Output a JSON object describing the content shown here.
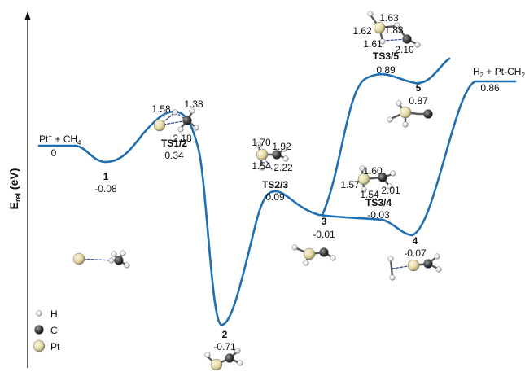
{
  "axis": {
    "ylabel": "E",
    "ylabel_sub": "rel",
    "ylabel_unit": " (eV)"
  },
  "states": [
    {
      "id": "start",
      "name_main": "Pt",
      "name_sup": "−",
      "name_rest": " + CH",
      "name_sub": "4",
      "energy": "0"
    },
    {
      "id": "1",
      "name": "1",
      "energy": "-0.08"
    },
    {
      "id": "TS1/2",
      "name": "TS1/2",
      "energy": "0.34"
    },
    {
      "id": "2",
      "name": "2",
      "energy": "-0.71"
    },
    {
      "id": "TS2/3",
      "name": "TS2/3",
      "energy": "0.09"
    },
    {
      "id": "3",
      "name": "3",
      "energy": "-0.01"
    },
    {
      "id": "TS3/4",
      "name": "TS3/4",
      "energy": "-0.03"
    },
    {
      "id": "4",
      "name": "4",
      "energy": "-0.07"
    },
    {
      "id": "TS3/5",
      "name": "TS3/5",
      "energy": "0.89"
    },
    {
      "id": "5",
      "name": "5",
      "energy": "0.87"
    },
    {
      "id": "end",
      "name_a": "H",
      "name_a_sub": "2",
      "name_b": " + Pt-CH",
      "name_b_sub": "2",
      "energy": "0.86"
    }
  ],
  "distances": {
    "ts12": [
      "1.58",
      "1.38",
      "2.18"
    ],
    "ts23": [
      "1.70",
      "1.92",
      "1.54",
      "2.22"
    ],
    "ts34": [
      "1.60",
      "1.57",
      "2.01",
      "1.54"
    ],
    "ts35": [
      "1.63",
      "1.62",
      "1.83",
      "1.61",
      "2.10"
    ]
  },
  "legend": [
    {
      "symbol": "H",
      "color": "#e6e6e6"
    },
    {
      "symbol": "C",
      "color": "#3a3a3a"
    },
    {
      "symbol": "Pt",
      "color": "#e3d7a4"
    }
  ],
  "colors": {
    "curve": "#1f6fb2",
    "bond": "#5a5a5a",
    "dashed": "#2d3f8f"
  }
}
